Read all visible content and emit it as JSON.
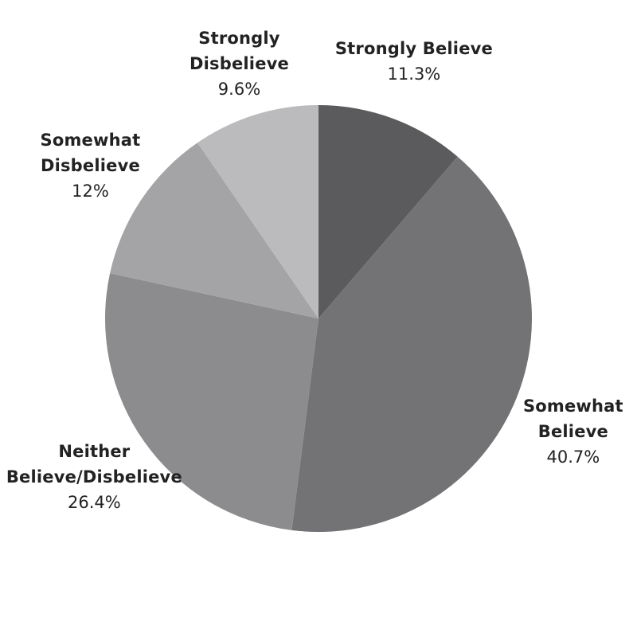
{
  "chart_data": {
    "type": "pie",
    "title": "",
    "slices": [
      {
        "label_lines": [
          "Strongly Believe"
        ],
        "value": 11.3,
        "value_label": "11.3%",
        "color": "#5b5b5d"
      },
      {
        "label_lines": [
          "Somewhat",
          "Believe"
        ],
        "value": 40.7,
        "value_label": "40.7%",
        "color": "#737275"
      },
      {
        "label_lines": [
          "Neither",
          "Believe/Disbelieve"
        ],
        "value": 26.4,
        "value_label": "26.4%",
        "color": "#8c8b8e"
      },
      {
        "label_lines": [
          "Somewhat",
          "Disbelieve"
        ],
        "value": 12.0,
        "value_label": "12%",
        "color": "#a4a3a6"
      },
      {
        "label_lines": [
          "Strongly",
          "Disbelieve"
        ],
        "value": 9.6,
        "value_label": "9.6%",
        "color": "#bbbabd"
      }
    ],
    "start_angle": "12 o'clock",
    "direction": "clockwise",
    "legend": "none"
  }
}
